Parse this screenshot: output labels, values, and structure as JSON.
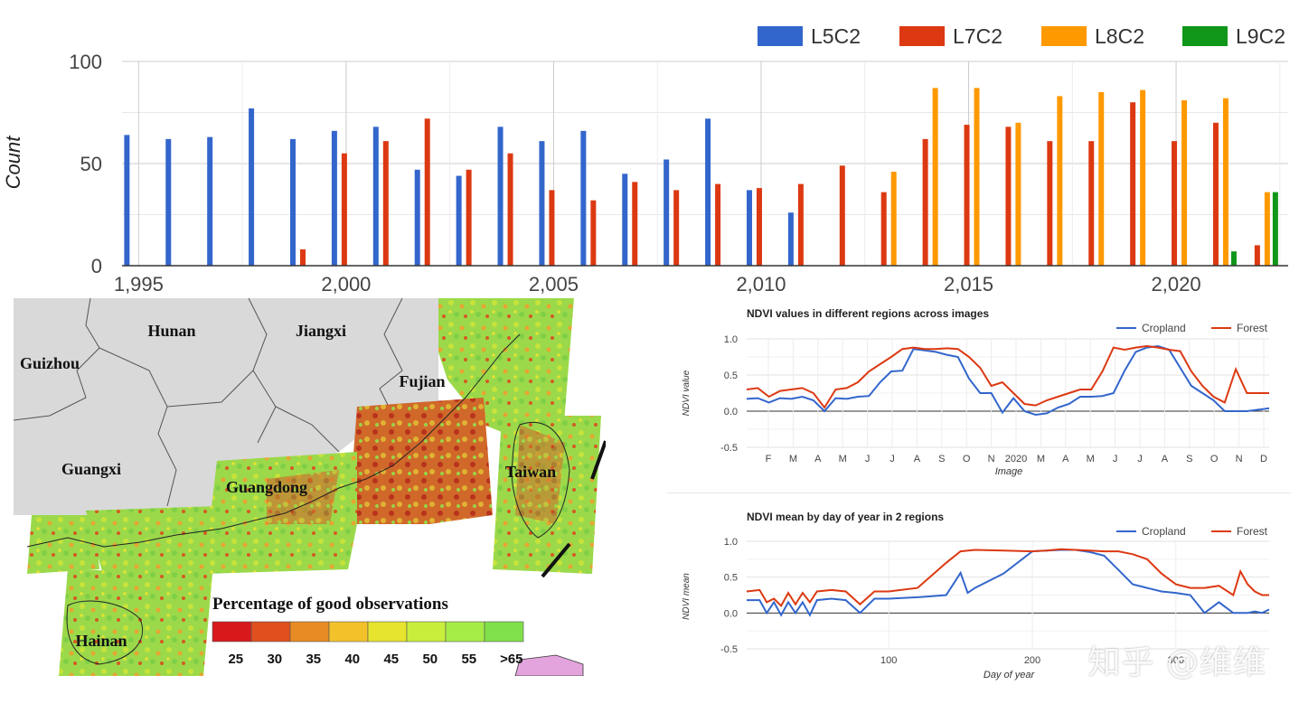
{
  "chart_data": [
    {
      "type": "bar",
      "ylabel": "Count",
      "ylim": [
        0,
        100
      ],
      "yticks": [
        0,
        50,
        100
      ],
      "xticks": [
        "1,995",
        "2,000",
        "2,005",
        "2,010",
        "2,015",
        "2,020"
      ],
      "grid": true,
      "legend_position": "top-right",
      "categories": [
        1995,
        1996,
        1997,
        1998,
        1999,
        2000,
        2001,
        2002,
        2003,
        2004,
        2005,
        2006,
        2007,
        2008,
        2009,
        2010,
        2011,
        2012,
        2013,
        2014,
        2015,
        2016,
        2017,
        2018,
        2019,
        2020,
        2021,
        2022
      ],
      "series": [
        {
          "name": "L5C2",
          "color": "#3366cc",
          "values": [
            64,
            62,
            63,
            77,
            62,
            66,
            68,
            47,
            44,
            68,
            61,
            66,
            45,
            52,
            72,
            37,
            26,
            null,
            null,
            null,
            null,
            null,
            null,
            null,
            null,
            null,
            null,
            null
          ]
        },
        {
          "name": "L7C2",
          "color": "#dc3912",
          "values": [
            null,
            null,
            null,
            null,
            8,
            55,
            61,
            72,
            47,
            55,
            37,
            32,
            41,
            37,
            40,
            38,
            40,
            49,
            36,
            62,
            69,
            68,
            61,
            61,
            80,
            61,
            70,
            10
          ]
        },
        {
          "name": "L8C2",
          "color": "#ff9900",
          "values": [
            null,
            null,
            null,
            null,
            null,
            null,
            null,
            null,
            null,
            null,
            null,
            null,
            null,
            null,
            null,
            null,
            null,
            null,
            46,
            87,
            87,
            70,
            83,
            85,
            86,
            81,
            82,
            36
          ]
        },
        {
          "name": "L9C2",
          "color": "#109618",
          "values": [
            null,
            null,
            null,
            null,
            null,
            null,
            null,
            null,
            null,
            null,
            null,
            null,
            null,
            null,
            null,
            null,
            null,
            null,
            null,
            null,
            null,
            null,
            null,
            null,
            null,
            null,
            7,
            36
          ]
        }
      ]
    },
    {
      "type": "line",
      "title": "NDVI values in different regions across images",
      "xlabel": "Image",
      "ylabel": "NDVI value",
      "ylim": [
        -0.5,
        1.0
      ],
      "yticks": [
        "1.0",
        "0.5",
        "0.0",
        "-0.5"
      ],
      "xticks": [
        "F",
        "M",
        "A",
        "M",
        "J",
        "J",
        "A",
        "S",
        "O",
        "N",
        "2020",
        "M",
        "A",
        "M",
        "J",
        "J",
        "A",
        "S",
        "O",
        "N",
        "D"
      ],
      "grid": true,
      "legend_position": "top-right",
      "x": [
        0,
        0.5,
        1,
        1.5,
        2,
        2.5,
        3,
        3.5,
        4,
        4.5,
        5,
        5.5,
        6,
        6.5,
        7,
        7.5,
        8,
        8.5,
        9,
        9.5,
        10,
        10.5,
        11,
        11.5,
        12,
        12.5,
        13,
        13.5,
        14,
        14.5,
        15,
        15.5,
        16,
        16.5,
        17,
        17.5,
        18,
        18.5,
        19,
        19.5,
        20,
        20.5,
        21,
        21.5,
        22,
        22.5,
        23,
        23.5
      ],
      "series": [
        {
          "name": "Cropland",
          "color": "#3366cc",
          "values": [
            0.17,
            0.18,
            0.12,
            0.18,
            0.17,
            0.2,
            0.15,
            0.0,
            0.18,
            0.17,
            0.2,
            0.21,
            0.4,
            0.55,
            0.56,
            0.86,
            0.84,
            0.82,
            0.78,
            0.75,
            0.45,
            0.25,
            0.25,
            -0.02,
            0.18,
            0.0,
            -0.05,
            -0.03,
            0.05,
            0.1,
            0.2,
            0.2,
            0.21,
            0.25,
            0.56,
            0.82,
            0.88,
            0.9,
            0.85,
            0.6,
            0.35,
            0.25,
            0.15,
            0.0,
            0.0,
            0.0,
            0.02,
            0.04
          ]
        },
        {
          "name": "Forest",
          "color": "#dc3912",
          "values": [
            0.3,
            0.32,
            0.2,
            0.28,
            0.3,
            0.32,
            0.25,
            0.05,
            0.3,
            0.32,
            0.4,
            0.55,
            0.65,
            0.75,
            0.86,
            0.88,
            0.86,
            0.86,
            0.87,
            0.86,
            0.75,
            0.6,
            0.35,
            0.4,
            0.25,
            0.1,
            0.08,
            0.15,
            0.2,
            0.25,
            0.3,
            0.3,
            0.55,
            0.88,
            0.85,
            0.88,
            0.9,
            0.88,
            0.85,
            0.83,
            0.55,
            0.35,
            0.2,
            0.12,
            0.58,
            0.25,
            0.25,
            0.25
          ]
        }
      ]
    },
    {
      "type": "line",
      "title": "NDVI mean by day of year in 2 regions",
      "xlabel": "Day of year",
      "ylabel": "NDVI mean",
      "ylim": [
        -0.5,
        1.0
      ],
      "xlim": [
        1,
        365
      ],
      "yticks": [
        "1.0",
        "0.5",
        "0.0",
        "-0.5"
      ],
      "xticks": [
        "100",
        "200",
        "300"
      ],
      "grid": true,
      "legend_position": "top-right",
      "series": [
        {
          "name": "Cropland",
          "color": "#3366cc",
          "x": [
            1,
            10,
            15,
            20,
            25,
            30,
            35,
            40,
            45,
            50,
            60,
            70,
            80,
            90,
            100,
            120,
            140,
            150,
            155,
            160,
            180,
            200,
            210,
            220,
            230,
            240,
            250,
            260,
            270,
            280,
            290,
            300,
            310,
            320,
            330,
            340,
            350,
            355,
            360,
            365
          ],
          "values": [
            0.18,
            0.18,
            0.0,
            0.15,
            -0.03,
            0.15,
            0.0,
            0.15,
            -0.03,
            0.18,
            0.2,
            0.18,
            0.0,
            0.2,
            0.2,
            0.22,
            0.25,
            0.56,
            0.28,
            0.35,
            0.55,
            0.86,
            0.87,
            0.88,
            0.88,
            0.85,
            0.8,
            0.6,
            0.4,
            0.35,
            0.3,
            0.28,
            0.25,
            0.0,
            0.15,
            0.0,
            0.0,
            0.02,
            0.0,
            0.05
          ]
        },
        {
          "name": "Forest",
          "color": "#dc3912",
          "x": [
            1,
            10,
            15,
            20,
            25,
            30,
            35,
            40,
            45,
            50,
            60,
            70,
            80,
            90,
            100,
            120,
            140,
            150,
            160,
            180,
            200,
            210,
            220,
            230,
            240,
            250,
            260,
            270,
            280,
            290,
            300,
            310,
            320,
            330,
            340,
            345,
            350,
            355,
            360,
            365
          ],
          "values": [
            0.3,
            0.32,
            0.15,
            0.2,
            0.1,
            0.28,
            0.12,
            0.28,
            0.15,
            0.3,
            0.32,
            0.3,
            0.12,
            0.3,
            0.3,
            0.35,
            0.7,
            0.86,
            0.88,
            0.87,
            0.86,
            0.87,
            0.89,
            0.88,
            0.87,
            0.86,
            0.86,
            0.82,
            0.75,
            0.55,
            0.4,
            0.35,
            0.35,
            0.38,
            0.25,
            0.58,
            0.4,
            0.3,
            0.25,
            0.25
          ]
        }
      ]
    }
  ],
  "map": {
    "provinces": [
      "Hunan",
      "Jiangxi",
      "Guizhou",
      "Fujian",
      "Guangxi",
      "Guangdong",
      "Taiwan",
      "Hainan"
    ],
    "legend_title": "Percentage of good observations",
    "legend_labels": [
      "25",
      "30",
      "35",
      "40",
      "45",
      "50",
      "55",
      ">65"
    ],
    "legend_colors": [
      "#d7191c",
      "#e04f1e",
      "#e98b24",
      "#f3c22b",
      "#e6e42e",
      "#c8ee3b",
      "#a6ec47",
      "#80e04a"
    ]
  },
  "watermark": "知乎 @维维"
}
